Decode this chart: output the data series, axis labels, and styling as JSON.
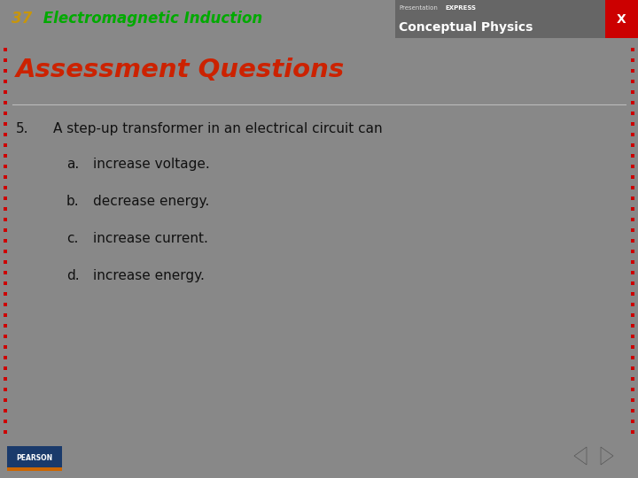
{
  "header_bg": "#888888",
  "header_number": "37",
  "header_number_color": "#c8960a",
  "header_title": " Electromagnetic Induction",
  "header_title_color": "#00aa00",
  "top_bar_color": "#cc0000",
  "right_header_bg": "#666666",
  "right_header_bottom": "Conceptual Physics",
  "x_button_color": "#cc0000",
  "main_bg": "#ffffff",
  "section_title": "Assessment Questions",
  "section_title_color": "#cc2200",
  "question_number": "5.",
  "question_text": "A step-up transformer in an electrical circuit can",
  "question_color": "#111111",
  "choices": [
    {
      "label": "a.",
      "text": "increase voltage."
    },
    {
      "label": "b.",
      "text": "decrease energy."
    },
    {
      "label": "c.",
      "text": "increase current."
    },
    {
      "label": "d.",
      "text": "increase energy."
    }
  ],
  "choice_color": "#111111",
  "footer_bg": "#b0b0b0",
  "dot_color": "#cc0000",
  "figsize": [
    7.2,
    5.4
  ],
  "dpi": 100
}
